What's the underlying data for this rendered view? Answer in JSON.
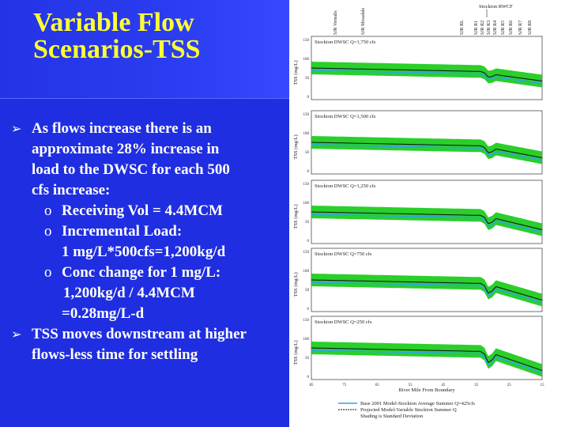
{
  "title": {
    "line1": "Variable Flow",
    "line2": "Scenarios-TSS"
  },
  "bullets": {
    "b1_line1": "As flows increase there is an",
    "b1_line2": "approximate 28% increase in",
    "b1_line3": "load to the DWSC for each 500",
    "b1_line4": "cfs increase:",
    "sub_marker": "o",
    "s1": "Receiving Vol = 4.4MCM",
    "s2": "Incremental Load:",
    "s2_line2": "1 mg/L*500cfs=1,200kg/d",
    "s3": "Conc change for 1 mg/L:",
    "s3_line2": "1,200kg/d  / 4.4MCM",
    "s3_line3": "=0.28mg/L-d",
    "b2_line1": "TSS moves downstream at higher",
    "b2_line2": "flows-less time for settling"
  },
  "figure": {
    "top_labels": [
      "SJR Vernalis",
      "SJR Mossdale",
      "SJR RL",
      "SJR R1",
      "SJR R2",
      "SJR R3",
      "SJR R4",
      "SJR R5",
      "SJR R6",
      "SJR R7",
      "SJR R8"
    ],
    "stockton_label": "Stockton RWCF",
    "ylabel": "TSS (mg/L)",
    "xlabel": "River Mile From Boundary",
    "panels": [
      {
        "label": "Stockton DWSC Q=1,750 cfs",
        "yticks": [
          "150",
          "100",
          "50",
          "0"
        ]
      },
      {
        "label": "Stockton DWSC Q=1,500 cfs",
        "yticks": [
          "150",
          "100",
          "50",
          "0"
        ]
      },
      {
        "label": "Stockton DWSC Q=1,250 cfs",
        "yticks": [
          "150",
          "100",
          "50",
          "0"
        ]
      },
      {
        "label": "Stockton DWSC Q=750 cfs",
        "yticks": [
          "150",
          "100",
          "50",
          "0"
        ]
      },
      {
        "label": "Stockton DWSC Q=250 cfs",
        "yticks": [
          "150",
          "100",
          "50",
          "0"
        ]
      }
    ],
    "xticks": [
      "85",
      "75",
      "65",
      "55",
      "45",
      "35",
      "25",
      "15"
    ],
    "legend": [
      "Base 2001 Model-Stockton Average Summer Q=425cfs",
      "Projected Model-Variable Stockton Summer Q",
      "Shading is Standard Deviation"
    ],
    "colors": {
      "band": "#1fcc1f",
      "base_line": "#2aa6e6",
      "projected_line": "#111111"
    }
  }
}
